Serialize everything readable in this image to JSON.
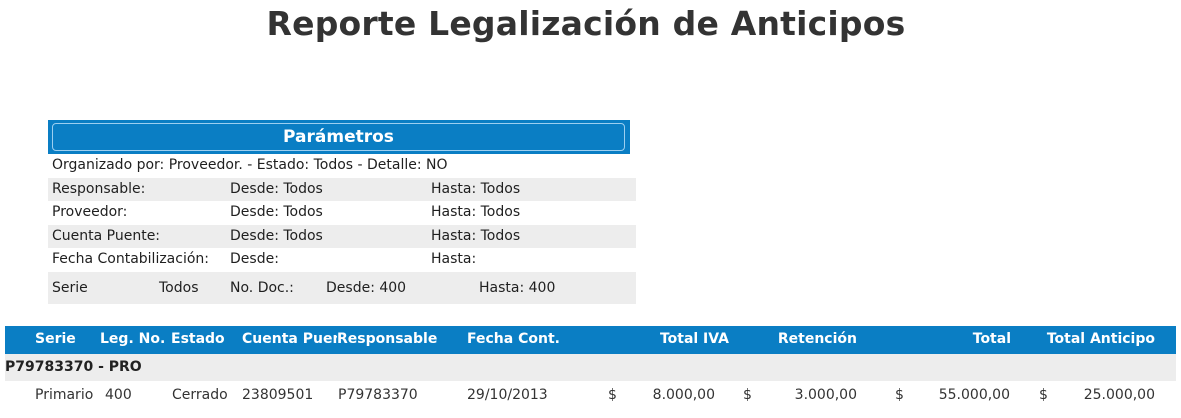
{
  "report": {
    "title": "Reporte Legalización de Anticipos"
  },
  "parameters": {
    "header": "Parámetros",
    "organized": "Organizado por:  Proveedor. - Estado: Todos - Detalle: NO",
    "rows": [
      {
        "label": "Responsable:",
        "from": "Desde: Todos",
        "to": "Hasta: Todos"
      },
      {
        "label": "Proveedor:",
        "from": "Desde: Todos",
        "to": "Hasta: Todos"
      },
      {
        "label": "Cuenta Puente:",
        "from": "Desde: Todos",
        "to": "Hasta: Todos"
      },
      {
        "label": "Fecha Contabilización:",
        "from": "Desde:",
        "to": "Hasta:"
      }
    ],
    "serie": {
      "label": "Serie",
      "value": "Todos",
      "doc_label": "No. Doc.:",
      "from": "Desde: 400",
      "to": "Hasta: 400"
    }
  },
  "table": {
    "columns": {
      "serie": "Serie",
      "leg_no": "Leg. No.",
      "estado": "Estado",
      "cuenta": "Cuenta Puent",
      "responsable": "Responsable",
      "fecha": "Fecha Cont.",
      "iva": "Total IVA",
      "retencion": "Retención",
      "total": "Total",
      "anticipo": "Total Anticipo"
    },
    "group": "P79783370 - PRO",
    "rows": [
      {
        "serie": "Primario",
        "leg_no": "400",
        "estado": "Cerrado",
        "cuenta": "23809501",
        "responsable": "P79783370",
        "fecha": "29/10/2013",
        "currency": "$",
        "iva": "8.000,00",
        "retencion": "3.000,00",
        "total": "55.000,00",
        "anticipo": "25.000,00"
      }
    ]
  }
}
